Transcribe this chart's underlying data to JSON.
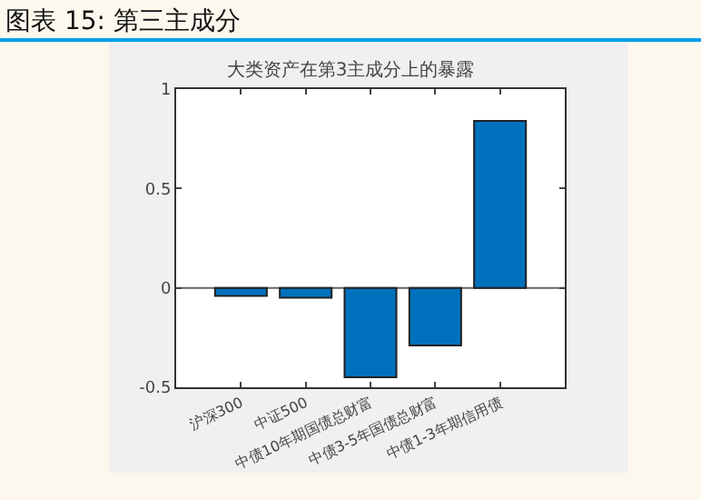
{
  "chart_data": {
    "type": "bar",
    "title": "大类资产在第3主成分上的暴露",
    "categories": [
      "沪深300",
      "中证500",
      "中债10年期国债总财富",
      "中债3-5年国债总财富",
      "中债1-3年期信用债"
    ],
    "values": [
      -0.04,
      -0.05,
      -0.45,
      -0.29,
      0.84
    ],
    "color": "#0072bd",
    "ylim": [
      -0.5,
      1
    ],
    "yticks": [
      -0.5,
      0,
      0.5,
      1
    ],
    "grid": false,
    "ref_lines": [
      {
        "axis": "y",
        "value": 0,
        "color": "#666666"
      }
    ],
    "annotations": [
      "图表 15: 第三主成分"
    ]
  }
}
